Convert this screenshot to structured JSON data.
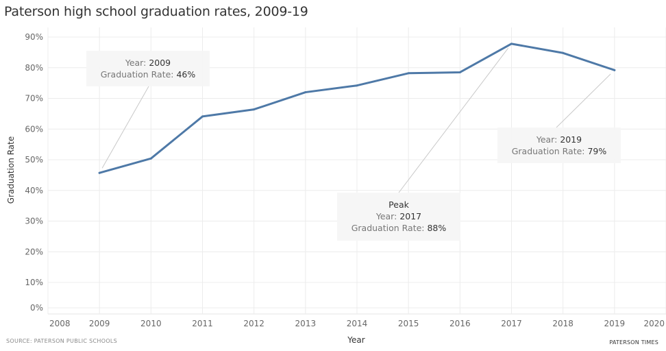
{
  "chart_data": {
    "type": "line",
    "title": "Paterson high school graduation rates, 2009-19",
    "xlabel": "Year",
    "ylabel": "Graduation Rate",
    "x_ticks": [
      "2008",
      "2009",
      "2010",
      "2011",
      "2012",
      "2013",
      "2014",
      "2015",
      "2016",
      "2017",
      "2018",
      "2019",
      "2020"
    ],
    "y_ticks": [
      "0%",
      "10%",
      "20%",
      "30%",
      "40%",
      "50%",
      "60%",
      "70%",
      "80%",
      "90%"
    ],
    "xlim": [
      2008,
      2020
    ],
    "ylim": [
      0,
      90
    ],
    "grid": true,
    "series": [
      {
        "name": "Graduation Rate",
        "color": "#4e79a7",
        "x": [
          2009,
          2010,
          2011,
          2012,
          2013,
          2014,
          2015,
          2016,
          2017,
          2018,
          2019
        ],
        "y": [
          45.7,
          50.4,
          64.1,
          66.4,
          72.0,
          74.2,
          78.2,
          78.5,
          87.8,
          84.8,
          79.2
        ]
      }
    ],
    "annotations": [
      {
        "id": "a2009",
        "heading": "",
        "year_label": "Year:",
        "year": "2009",
        "rate_label": "Graduation Rate:",
        "rate": "46%",
        "point_x": 2009,
        "point_y": 45.7
      },
      {
        "id": "a2017",
        "heading": "Peak",
        "year_label": "Year:",
        "year": "2017",
        "rate_label": "Graduation Rate:",
        "rate": "88%",
        "point_x": 2017,
        "point_y": 87.8
      },
      {
        "id": "a2019",
        "heading": "",
        "year_label": "Year:",
        "year": "2019",
        "rate_label": "Graduation Rate:",
        "rate": "79%",
        "point_x": 2019,
        "point_y": 79.2
      }
    ]
  },
  "footer": {
    "source": "SOURCE: PATERSON PUBLIC SCHOOLS",
    "brand": "PATERSON TIMES"
  }
}
